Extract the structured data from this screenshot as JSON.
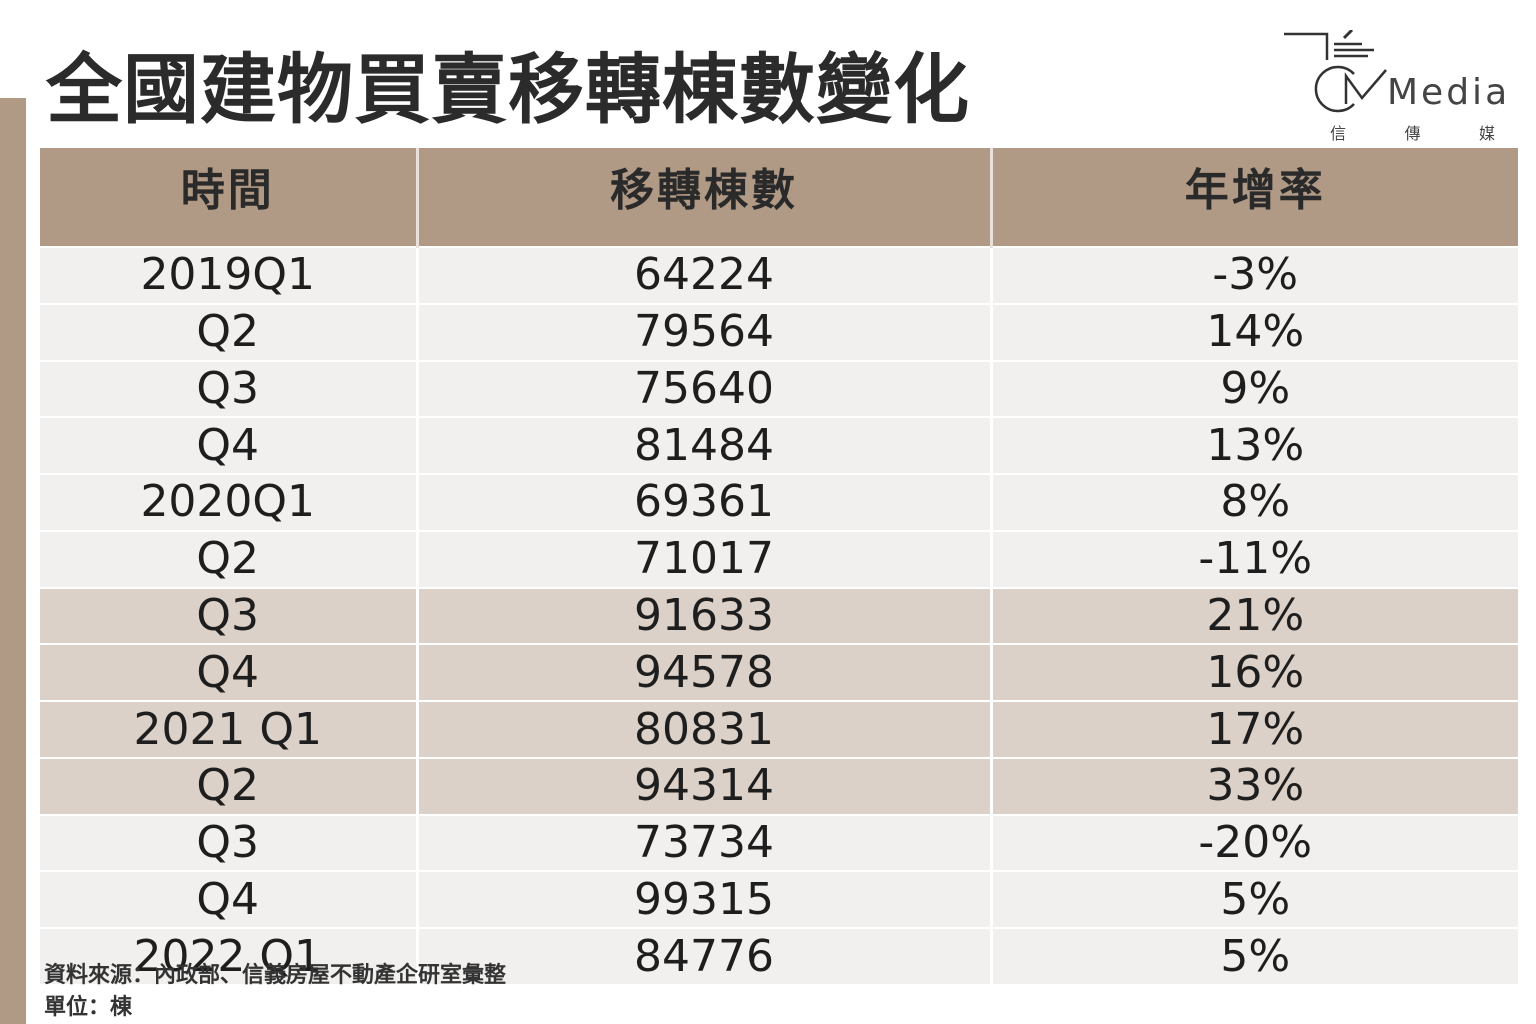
{
  "title": "全國建物買賣移轉棟數變化",
  "logo": {
    "text": "Media",
    "sub": [
      "信",
      "傳",
      "媒"
    ]
  },
  "chart_data": {
    "type": "table",
    "title": "全國建物買賣移轉棟數變化",
    "columns": [
      "時間",
      "移轉棟數",
      "年增率"
    ],
    "rows": [
      {
        "period": "2019Q1",
        "count": "64224",
        "yoy": "-3%",
        "highlight": false
      },
      {
        "period": "Q2",
        "count": "79564",
        "yoy": "14%",
        "highlight": false
      },
      {
        "period": "Q3",
        "count": "75640",
        "yoy": "9%",
        "highlight": false
      },
      {
        "period": "Q4",
        "count": "81484",
        "yoy": "13%",
        "highlight": false
      },
      {
        "period": "2020Q1",
        "count": "69361",
        "yoy": "8%",
        "highlight": false
      },
      {
        "period": "Q2",
        "count": "71017",
        "yoy": "-11%",
        "highlight": false
      },
      {
        "period": "Q3",
        "count": "91633",
        "yoy": "21%",
        "highlight": true
      },
      {
        "period": "Q4",
        "count": "94578",
        "yoy": "16%",
        "highlight": true
      },
      {
        "period": "2021 Q1",
        "count": "80831",
        "yoy": "17%",
        "highlight": true
      },
      {
        "period": "Q2",
        "count": "94314",
        "yoy": "33%",
        "highlight": true
      },
      {
        "period": "Q3",
        "count": "73734",
        "yoy": "-20%",
        "highlight": false
      },
      {
        "period": "Q4",
        "count": "99315",
        "yoy": "5%",
        "highlight": false
      },
      {
        "period": "2022 Q1",
        "count": "84776",
        "yoy": "5%",
        "highlight": false
      }
    ]
  },
  "footer": {
    "source": "資料來源：內政部、信義房屋不動產企研室彙整",
    "unit": "單位：棟"
  },
  "colors": {
    "accent": "#b09985",
    "highlight_row": "#dcd1c8",
    "row": "#f1f0ee"
  }
}
